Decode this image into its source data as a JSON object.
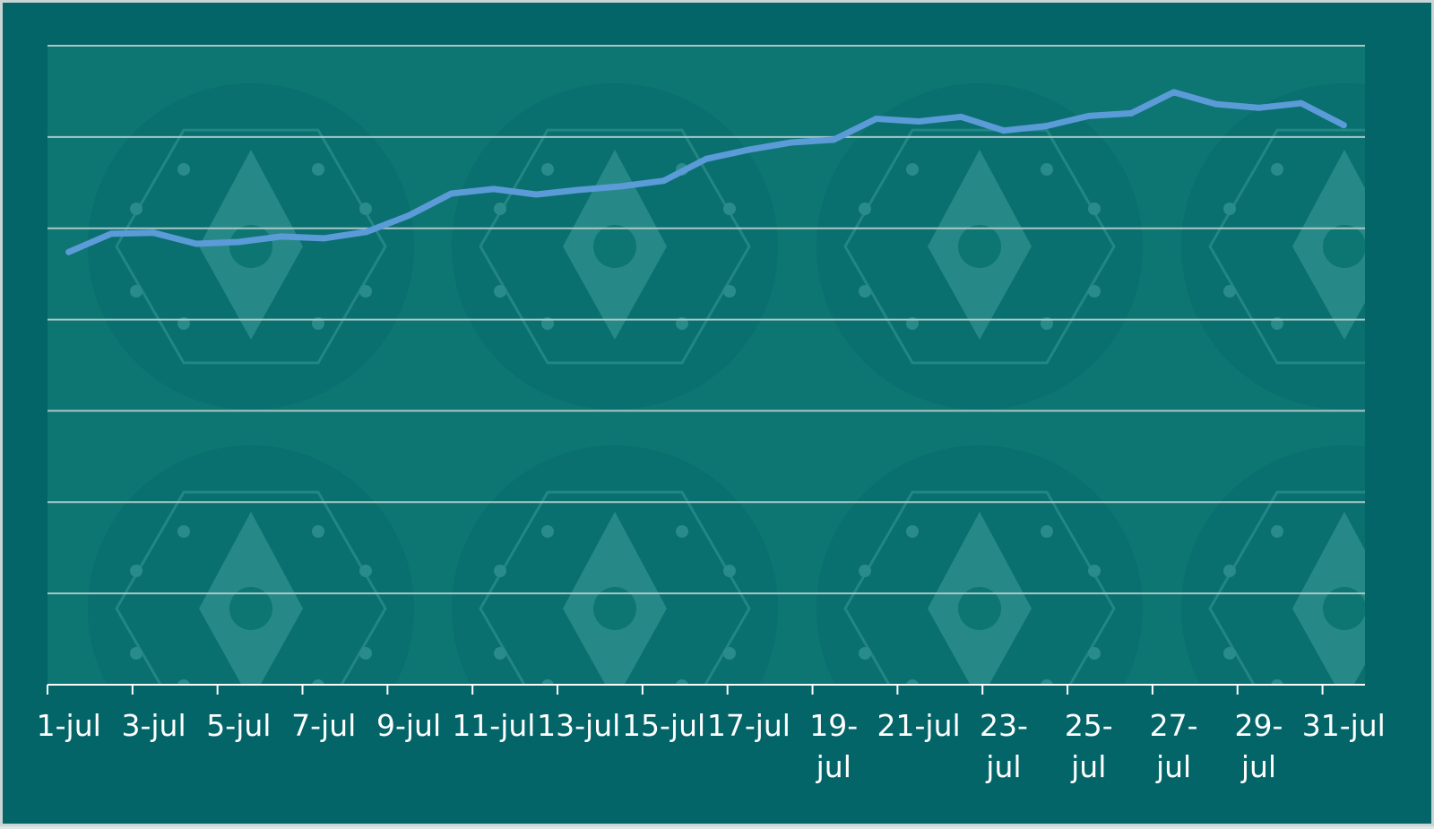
{
  "colors": {
    "frame_background": "#046569",
    "plot_background": "#0d7572",
    "watermark": "#2a8c8a",
    "gridline": "#a9c8c7",
    "axis": "#ffffff",
    "series_line": "#5b9bd8",
    "tick_text": "#ffffff"
  },
  "watermark_icon": "gear-with-diamond-watermark",
  "chart_data": {
    "type": "line",
    "title": "",
    "xlabel": "",
    "ylabel": "",
    "x_tick_labels": [
      "1-jul",
      "3-jul",
      "5-jul",
      "7-jul",
      "9-jul",
      "11-jul",
      "13-jul",
      "15-jul",
      "17-jul",
      "19-jul",
      "21-jul",
      "23-jul",
      "25-jul",
      "27-jul",
      "29-jul",
      "31-jul"
    ],
    "x": [
      "1-jul",
      "2-jul",
      "3-jul",
      "4-jul",
      "5-jul",
      "6-jul",
      "7-jul",
      "8-jul",
      "9-jul",
      "10-jul",
      "11-jul",
      "12-jul",
      "13-jul",
      "14-jul",
      "15-jul",
      "16-jul",
      "17-jul",
      "18-jul",
      "19-jul",
      "20-jul",
      "21-jul",
      "22-jul",
      "23-jul",
      "24-jul",
      "25-jul",
      "26-jul",
      "27-jul",
      "28-jul",
      "29-jul",
      "30-jul",
      "31-jul"
    ],
    "series": [
      {
        "values": [
          4.74,
          4.94,
          4.95,
          4.83,
          4.85,
          4.91,
          4.89,
          4.96,
          5.14,
          5.38,
          5.43,
          5.37,
          5.42,
          5.46,
          5.52,
          5.76,
          5.86,
          5.94,
          5.97,
          6.2,
          6.17,
          6.22,
          6.07,
          6.12,
          6.23,
          6.26,
          6.49,
          6.36,
          6.32,
          6.37,
          6.13
        ]
      }
    ],
    "ylim": [
      0,
      7
    ],
    "y_gridlines": [
      0,
      1,
      2,
      3,
      4,
      5,
      6,
      7
    ],
    "grid": true,
    "legend": "none"
  }
}
